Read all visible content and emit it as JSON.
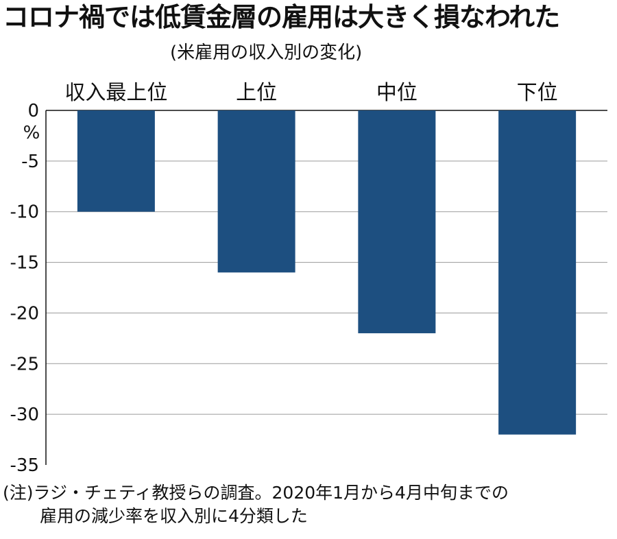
{
  "title": "コロナ禍では低賃金層の雇用は大きく損なわれた",
  "subtitle": "(米雇用の収入別の変化)",
  "note": {
    "line1": "(注)ラジ・チェティ教授らの調査。2020年1月から4月中旬までの",
    "line2": "雇用の減少率を収入別に4分類した"
  },
  "colors": {
    "bar": "#1d4f80",
    "grid": "#9a9a9a",
    "axis": "#111111"
  },
  "chart_data": {
    "type": "bar",
    "title": "コロナ禍では低賃金層の雇用は大きく損なわれた",
    "subtitle": "(米雇用の収入別の変化)",
    "categories": [
      "収入最上位",
      "上位",
      "中位",
      "下位"
    ],
    "values": [
      -10,
      -16,
      -22,
      -32
    ],
    "ylabel": "%",
    "ylim": [
      -35,
      0
    ],
    "yticks": [
      0,
      -5,
      -10,
      -15,
      -20,
      -25,
      -30,
      -35
    ],
    "ytick_labels": [
      "0",
      "-5",
      "-10",
      "-15",
      "-20",
      "-25",
      "-30",
      "-35"
    ],
    "grid": true,
    "category_labels_position": "top"
  }
}
